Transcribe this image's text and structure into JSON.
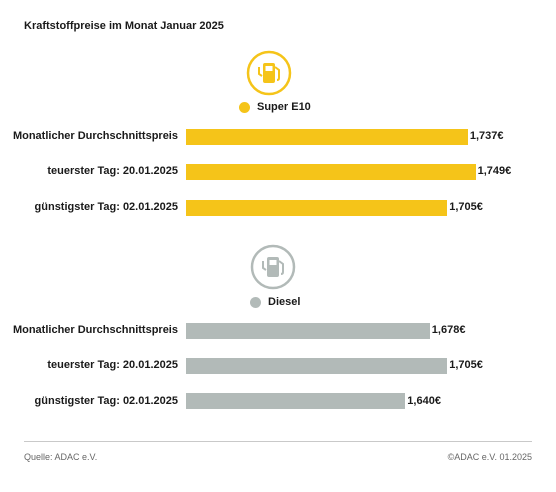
{
  "title": "Kraftstoffpreise im Monat Januar 2025",
  "chart_data": [
    {
      "type": "bar",
      "orientation": "horizontal",
      "series_name": "Super E10",
      "color": "#F5C419",
      "icon": "fuel-pump-icon",
      "categories": [
        "Monatlicher Durchschnittspreis",
        "teuerster Tag: 20.01.2025",
        "günstigster Tag: 02.01.2025"
      ],
      "values": [
        1.737,
        1.749,
        1.705
      ],
      "value_labels": [
        "1,737€",
        "1,749€",
        "1,705€"
      ]
    },
    {
      "type": "bar",
      "orientation": "horizontal",
      "series_name": "Diesel",
      "color": "#B2BAB8",
      "icon": "fuel-pump-icon",
      "categories": [
        "Monatlicher Durchschnittspreis",
        "teuerster Tag: 20.01.2025",
        "günstigster Tag: 02.01.2025"
      ],
      "values": [
        1.678,
        1.705,
        1.64
      ],
      "value_labels": [
        "1,678€",
        "1,705€",
        "1,640€"
      ]
    }
  ],
  "footer": {
    "source": "Quelle: ADAC e.V.",
    "copyright": "©ADAC e.V. 01.2025"
  }
}
